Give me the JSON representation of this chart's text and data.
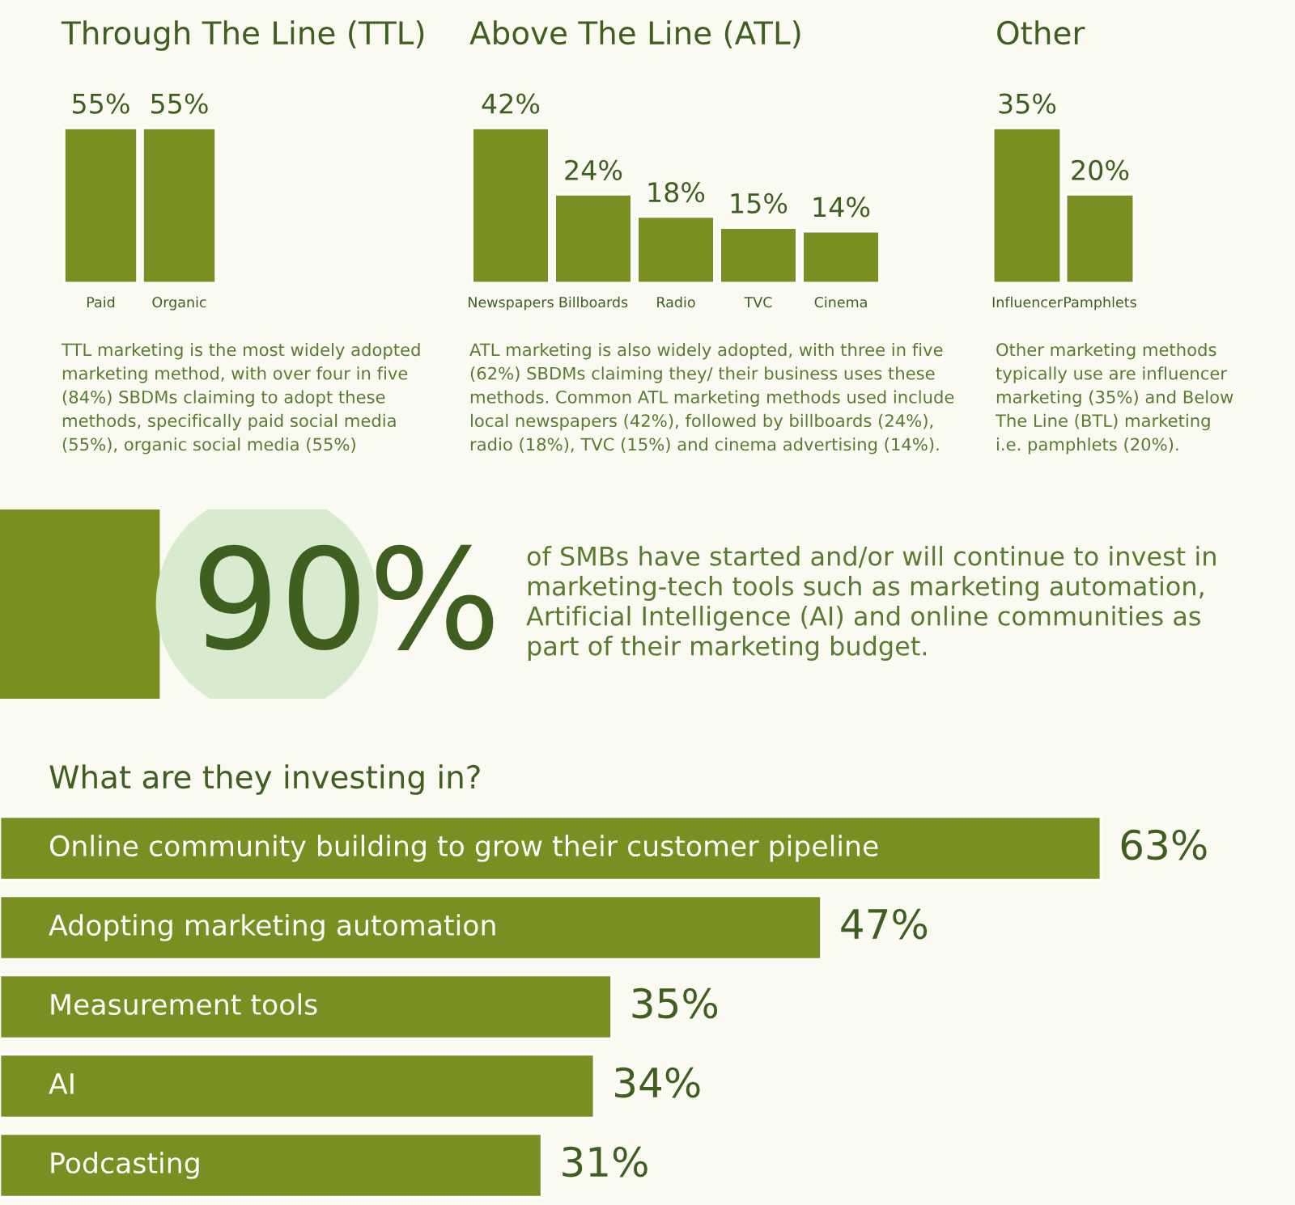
{
  "chart_data": [
    {
      "type": "bar",
      "title": "Through The Line (TTL)",
      "categories": [
        "Paid",
        "Organic"
      ],
      "values": [
        55,
        55
      ],
      "color": "#7a8f22",
      "value_labels": [
        "55%",
        "55%"
      ],
      "annotations": [
        "TTL marketing is the most widely adopted\nmarketing method, with over four in five\n(84%) SBDMs claiming to adopt these\nmethods, specifically paid social media\n(55%), organic social media (55%)"
      ]
    },
    {
      "type": "bar",
      "title": "Above The Line (ATL)",
      "categories": [
        "Newspapers",
        "Billboards",
        "Radio",
        "TVC",
        "Cinema"
      ],
      "values": [
        42,
        24,
        18,
        15,
        14
      ],
      "color": "#7a8f22",
      "value_labels": [
        "42%",
        "24%",
        "18%",
        "15%",
        "14%"
      ],
      "annotations": [
        "ATL marketing is also widely adopted, with three in five\n(62%) SBDMs claiming they/ their business uses these\nmethods. Common ATL marketing methods used include\nlocal newspapers (42%), followed by billboards (24%),\nradio (18%), TVC (15%) and cinema advertising (14%)."
      ]
    },
    {
      "type": "bar",
      "title": "Other",
      "categories": [
        "Influencer",
        "Pamphlets"
      ],
      "values": [
        35,
        20
      ],
      "color": "#7a8f22",
      "value_labels": [
        "35%",
        "20%"
      ],
      "annotations": [
        "Other marketing methods\ntypically use are influencer\nmarketing (35%) and Below\nThe Line (BTL) marketing\ni.e. pamphlets (20%)."
      ]
    },
    {
      "type": "other",
      "annotations": [
        "90%",
        "of SMBs have started and/or will continue to invest in\nmarketing-tech tools such as marketing automation,\nArtificial Intelligence (AI) and online communities as\npart of their marketing budget."
      ]
    },
    {
      "type": "bar",
      "orientation": "horizontal",
      "title": "What are they investing in?",
      "categories": [
        "Online community building to grow their customer pipeline",
        "Adopting marketing automation",
        "Measurement tools",
        "AI",
        "Podcasting"
      ],
      "values": [
        63,
        47,
        35,
        34,
        31
      ],
      "color": "#7a8f22",
      "value_labels": [
        "63%",
        "47%",
        "35%",
        "34%",
        "31%"
      ]
    }
  ]
}
